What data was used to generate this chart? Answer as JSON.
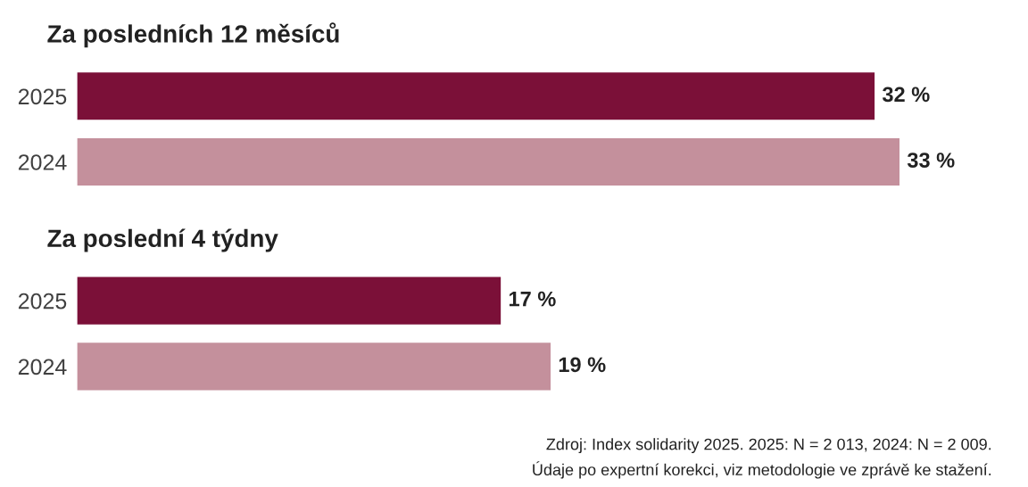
{
  "chart_data": [
    {
      "type": "bar",
      "orientation": "horizontal",
      "title": "Za posledních 12 měsíců",
      "categories": [
        "2025",
        "2024"
      ],
      "values": [
        32,
        33
      ],
      "colors": [
        "#7b1038",
        "#c4909c"
      ],
      "value_labels": [
        "32 %",
        "33 %"
      ],
      "tick_labels": "y"
    },
    {
      "type": "bar",
      "orientation": "horizontal",
      "title": "Za poslední 4 týdny",
      "categories": [
        "2025",
        "2024"
      ],
      "values": [
        17,
        19
      ],
      "colors": [
        "#7b1038",
        "#c4909c"
      ],
      "value_labels": [
        "17 %",
        "19 %"
      ],
      "tick_labels": "y",
      "annotations": [
        "Zdroj: Index solidarity 2025. 2025: N = 2 013, 2024: N = 2 009.",
        "Údaje po expertní korekci, viz metodologie ve zprávě ke stažení."
      ]
    }
  ]
}
